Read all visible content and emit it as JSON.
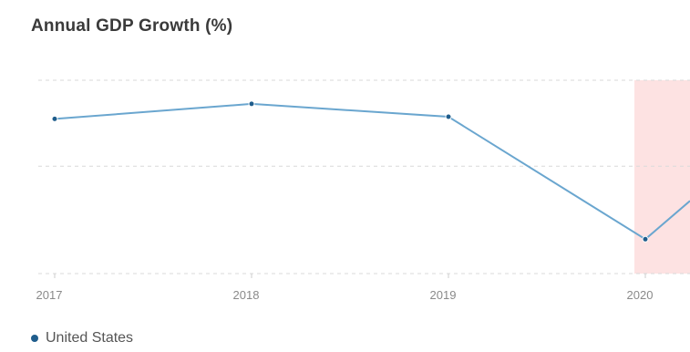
{
  "chart_data": {
    "type": "line",
    "title": "Annual GDP Growth (%)",
    "categories": [
      "2017",
      "2018",
      "2019",
      "2020"
    ],
    "series": [
      {
        "name": "United States",
        "values": [
          2.2,
          2.9,
          2.3,
          -3.4
        ],
        "color": "#6aa6cf",
        "point_color": "#1f5d8c"
      }
    ],
    "next_value_direction": "up",
    "ylim": [
      -5,
      4
    ],
    "gridlines": [
      4,
      0,
      -5
    ],
    "grid": true,
    "highlight": {
      "from": "2020",
      "color": "#fde2e2"
    },
    "legend": "bottom-left"
  }
}
